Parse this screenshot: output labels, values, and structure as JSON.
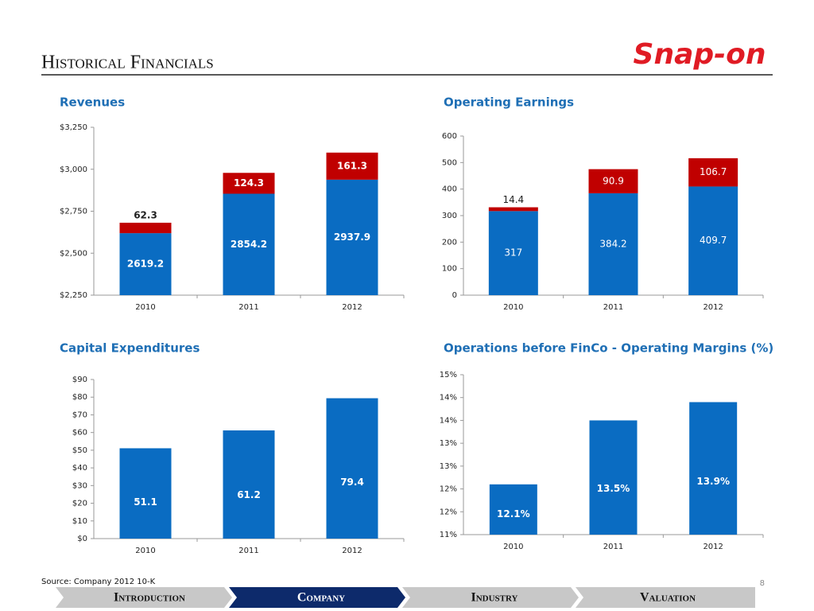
{
  "header": {
    "title": "Historical Financials",
    "logo": "Snap-on"
  },
  "chart_data": [
    {
      "type": "bar",
      "title": "Revenues",
      "categories": [
        "2010",
        "2011",
        "2012"
      ],
      "series": [
        {
          "color": "#0a6cc2",
          "values": [
            2619.2,
            2854.2,
            2937.9
          ]
        },
        {
          "color": "#c00000",
          "values": [
            62.3,
            124.3,
            161.3
          ]
        }
      ],
      "ylim": [
        2250,
        3250
      ],
      "yticks": [
        {
          "value": 2250,
          "label": "$2,250"
        },
        {
          "value": 2500,
          "label": "$2,500"
        },
        {
          "value": 2750,
          "label": "$2,750"
        },
        {
          "value": 3000,
          "label": "$3,000"
        },
        {
          "value": 3250,
          "label": "$3,250"
        }
      ]
    },
    {
      "type": "bar",
      "title": "Operating Earnings",
      "categories": [
        "2010",
        "2011",
        "2012"
      ],
      "series": [
        {
          "color": "#0a6cc2",
          "values": [
            317,
            384.2,
            409.7
          ]
        },
        {
          "color": "#c00000",
          "values": [
            14.4,
            90.9,
            106.7
          ]
        }
      ],
      "ylim": [
        0,
        600
      ],
      "yticks": [
        0,
        100,
        200,
        300,
        400,
        500,
        600
      ]
    },
    {
      "type": "bar",
      "title": "Capital Expenditures",
      "categories": [
        "2010",
        "2011",
        "2012"
      ],
      "color": "#0a6cc2",
      "values": [
        51.1,
        61.2,
        79.4
      ],
      "ylim": [
        0,
        90
      ],
      "yticks": [
        {
          "value": 0,
          "label": "$0"
        },
        {
          "value": 10,
          "label": "$10"
        },
        {
          "value": 20,
          "label": "$20"
        },
        {
          "value": 30,
          "label": "$30"
        },
        {
          "value": 40,
          "label": "$40"
        },
        {
          "value": 50,
          "label": "$50"
        },
        {
          "value": 60,
          "label": "$60"
        },
        {
          "value": 70,
          "label": "$70"
        },
        {
          "value": 80,
          "label": "$80"
        },
        {
          "value": 90,
          "label": "$90"
        }
      ]
    },
    {
      "type": "bar",
      "title": "Operations before FinCo -  Operating Margins (%)",
      "categories": [
        "2010",
        "2011",
        "2012"
      ],
      "color": "#0a6cc2",
      "values": [
        12.1,
        13.5,
        13.9
      ],
      "value_labels": [
        "12.1%",
        "13.5%",
        "13.9%"
      ],
      "ylim": [
        11,
        14.5
      ],
      "yticks": [
        {
          "value": 11,
          "label": "11%"
        },
        {
          "value": 11.5,
          "label": "12%"
        },
        {
          "value": 12,
          "label": "12%"
        },
        {
          "value": 12.5,
          "label": "13%"
        },
        {
          "value": 13,
          "label": "13%"
        },
        {
          "value": 13.5,
          "label": "14%"
        },
        {
          "value": 14,
          "label": "14%"
        },
        {
          "value": 14.5,
          "label": "15%"
        }
      ]
    }
  ],
  "footer": {
    "source": "Source: Company 2012 10-K",
    "page": "8"
  },
  "nav": [
    "Introduction",
    "Company",
    "Industry",
    "Valuation"
  ]
}
